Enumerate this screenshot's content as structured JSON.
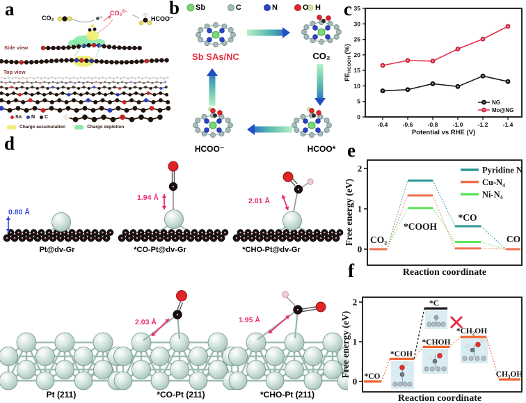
{
  "panels": {
    "a": {
      "label": "a",
      "scheme": {
        "co2": "CO₂",
        "electron": "e⁻",
        "co2_radical": {
          "base": "CO₂",
          "sup": "δ−"
        },
        "hcoo": "HCOO⁻"
      },
      "side_view": "Side view",
      "top_view": "Top view",
      "atom_legend": [
        {
          "name": "Sn",
          "color": "#d42424"
        },
        {
          "name": "N",
          "color": "#2a3cb8"
        },
        {
          "name": "C",
          "color": "#241510"
        }
      ],
      "charge_legend": [
        {
          "name": "Charge accumulation",
          "color": "#f0ee7a"
        },
        {
          "name": "Charge depletion",
          "color": "#8ae8a6"
        }
      ]
    },
    "b": {
      "label": "b",
      "atom_legend": [
        {
          "name": "Sb",
          "color": "#7ad87a"
        },
        {
          "name": "C",
          "color": "#a6baba"
        },
        {
          "name": "N",
          "color": "#2746c8"
        },
        {
          "name": "O",
          "color": "#e02428"
        },
        {
          "name": "H",
          "color": "#cfe8a8"
        }
      ],
      "states": {
        "catalyst": "Sb SAs/NC",
        "catalyst_color": "#e8283c",
        "co2": "CO₂",
        "hcoo_minus": "HCOO⁻",
        "hcoo_star": "HCOO*"
      }
    },
    "c": {
      "label": "c"
    },
    "d": {
      "label": "d",
      "row1": [
        {
          "label": "Pt@dv-Gr",
          "bond_length": "0.80 Å",
          "annotation_color": "#3048dc"
        },
        {
          "label": "*CO-Pt@dv-Gr",
          "bond_length": "1.94 Å",
          "annotation_color": "#ee2876"
        },
        {
          "label": "*CHO-Pt@dv-Gr",
          "bond_length": "2.01 Å",
          "annotation_color": "#ee2876"
        }
      ],
      "row2": [
        {
          "label": "Pt (211)"
        },
        {
          "label": "*CO-Pt (211)",
          "bond_length": "2.03 Å",
          "annotation_color": "#ee2876"
        },
        {
          "label": "*CHO-Pt (211)",
          "bond_length": "1.95 Å",
          "annotation_color": "#ee2876"
        }
      ]
    },
    "e": {
      "label": "e"
    },
    "f": {
      "label": "f"
    }
  },
  "chart_data": [
    {
      "panel": "c",
      "type": "line",
      "x": [
        -0.4,
        -0.6,
        -0.8,
        -1.0,
        -1.2,
        -1.4
      ],
      "series": [
        {
          "name": "NG",
          "color": "#1a1a1a",
          "dark": "#000000",
          "values": [
            8.4,
            8.8,
            10.7,
            9.8,
            13.2,
            11.4
          ]
        },
        {
          "name": "Mo@NG",
          "color": "#e8304a",
          "dark": "#a01830",
          "values": [
            16.6,
            18.2,
            18.0,
            21.9,
            25.1,
            29.2
          ]
        }
      ],
      "xlabel": "Potential vs RHE (V)",
      "ylabel_parts": [
        "FE",
        "HCOOH",
        " (%)"
      ],
      "ylim": [
        0,
        35
      ],
      "yticks": [
        0,
        5,
        10,
        15,
        20,
        25,
        30,
        35
      ],
      "legend_position": "bottom-right",
      "grid": false
    },
    {
      "panel": "e",
      "type": "energy-diagram",
      "states": [
        "CO₂",
        "*COOH",
        "*CO",
        "CO"
      ],
      "series": [
        {
          "name": "Pyridine N",
          "color": "#2e9696",
          "values": [
            0,
            1.7,
            0.57,
            0
          ]
        },
        {
          "name": "Cu-N₄",
          "color": "#f07050",
          "values": [
            0,
            1.33,
            0.02,
            0
          ]
        },
        {
          "name": "Ni-N₄",
          "color": "#58e858",
          "values": [
            0,
            1.02,
            0.18,
            0
          ]
        }
      ],
      "xlabel": "Reaction coordinate",
      "ylabel": "Free energy (eV)",
      "ylim": [
        -0.4,
        2.2
      ],
      "yticks": [
        0,
        1,
        2
      ],
      "legend_position": "top-right"
    },
    {
      "panel": "f",
      "type": "energy-diagram",
      "main_path": {
        "color": "#f26430",
        "states": [
          "*CO",
          "*COH",
          "*CHOH",
          "*CH₂OH",
          "CH₃OH"
        ],
        "values": [
          0,
          0.57,
          0.87,
          1.12,
          0.05
        ]
      },
      "rejected_branch": {
        "color": "#1c1c1c",
        "from": "*COH",
        "state": "*C",
        "value": 1.84,
        "marker": "red-x",
        "marker_color": "#e82840"
      },
      "xlabel": "Reaction coordinate",
      "ylabel": "Free energy (eV)",
      "ylim": [
        -0.3,
        2.2
      ],
      "yticks": [
        0,
        1,
        2
      ]
    }
  ]
}
